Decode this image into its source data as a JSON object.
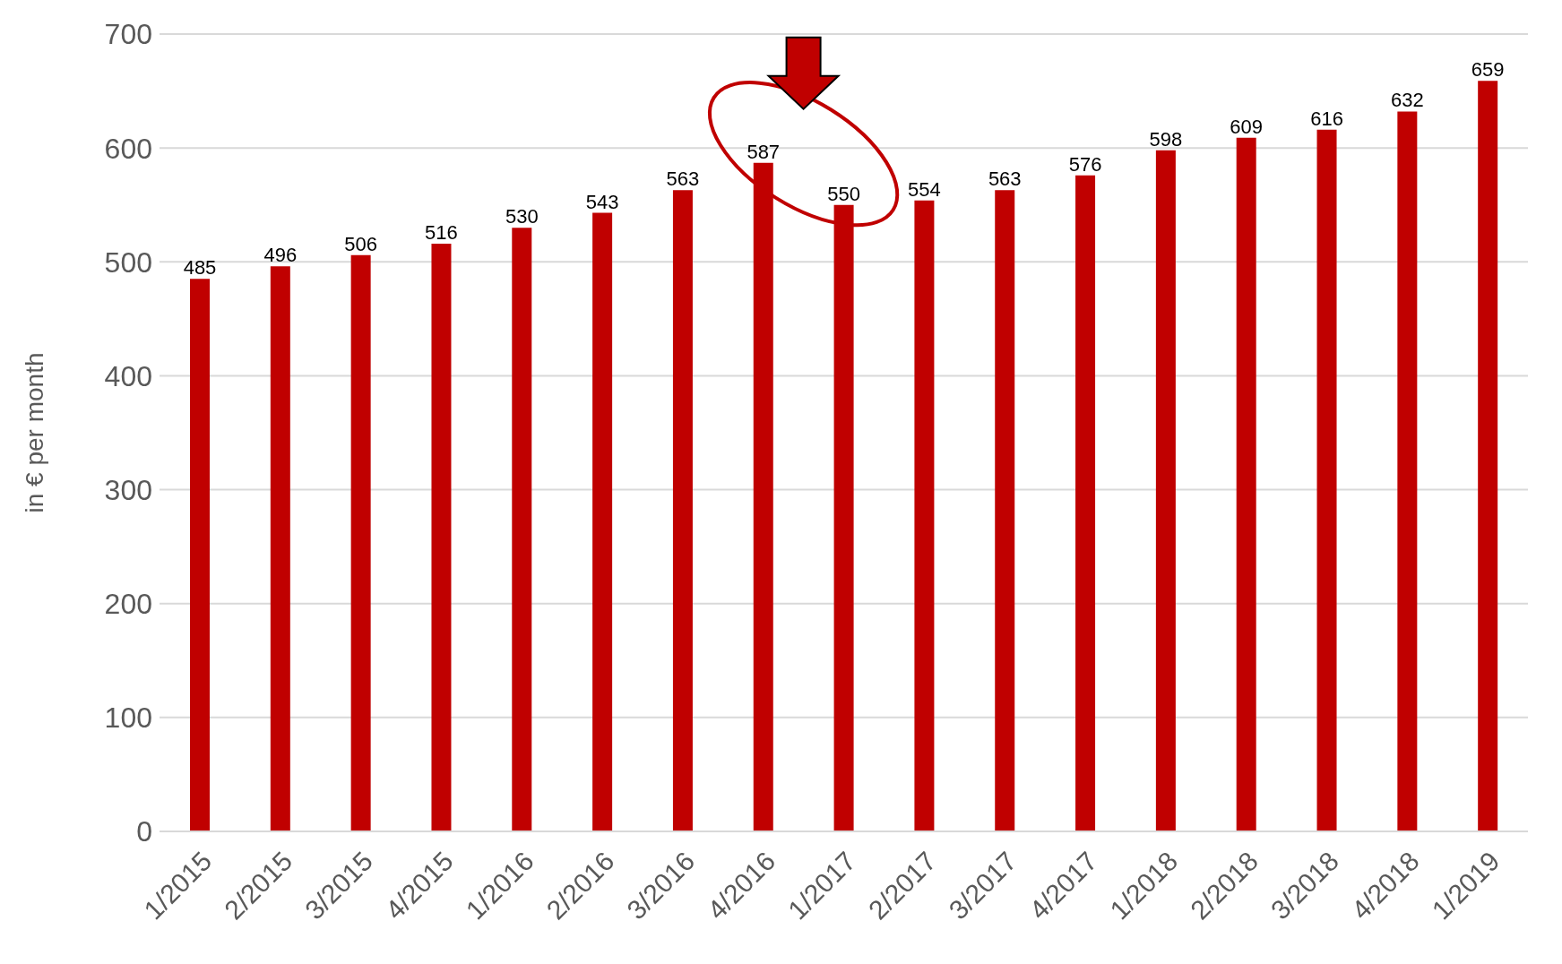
{
  "chart_data": {
    "type": "bar",
    "ylabel": "in € per month",
    "categories": [
      "1/2015",
      "2/2015",
      "3/2015",
      "4/2015",
      "1/2016",
      "2/2016",
      "3/2016",
      "4/2016",
      "1/2017",
      "2/2017",
      "3/2017",
      "4/2017",
      "1/2018",
      "2/2018",
      "3/2018",
      "4/2018",
      "1/2019"
    ],
    "values": [
      485,
      496,
      506,
      516,
      530,
      543,
      563,
      587,
      550,
      554,
      563,
      576,
      598,
      609,
      616,
      632,
      659
    ],
    "color": "#c00000",
    "ylim": [
      0,
      700
    ],
    "yticks": [
      0,
      100,
      200,
      300,
      400,
      500,
      600,
      700
    ],
    "grid": "y",
    "data_labels": true
  }
}
